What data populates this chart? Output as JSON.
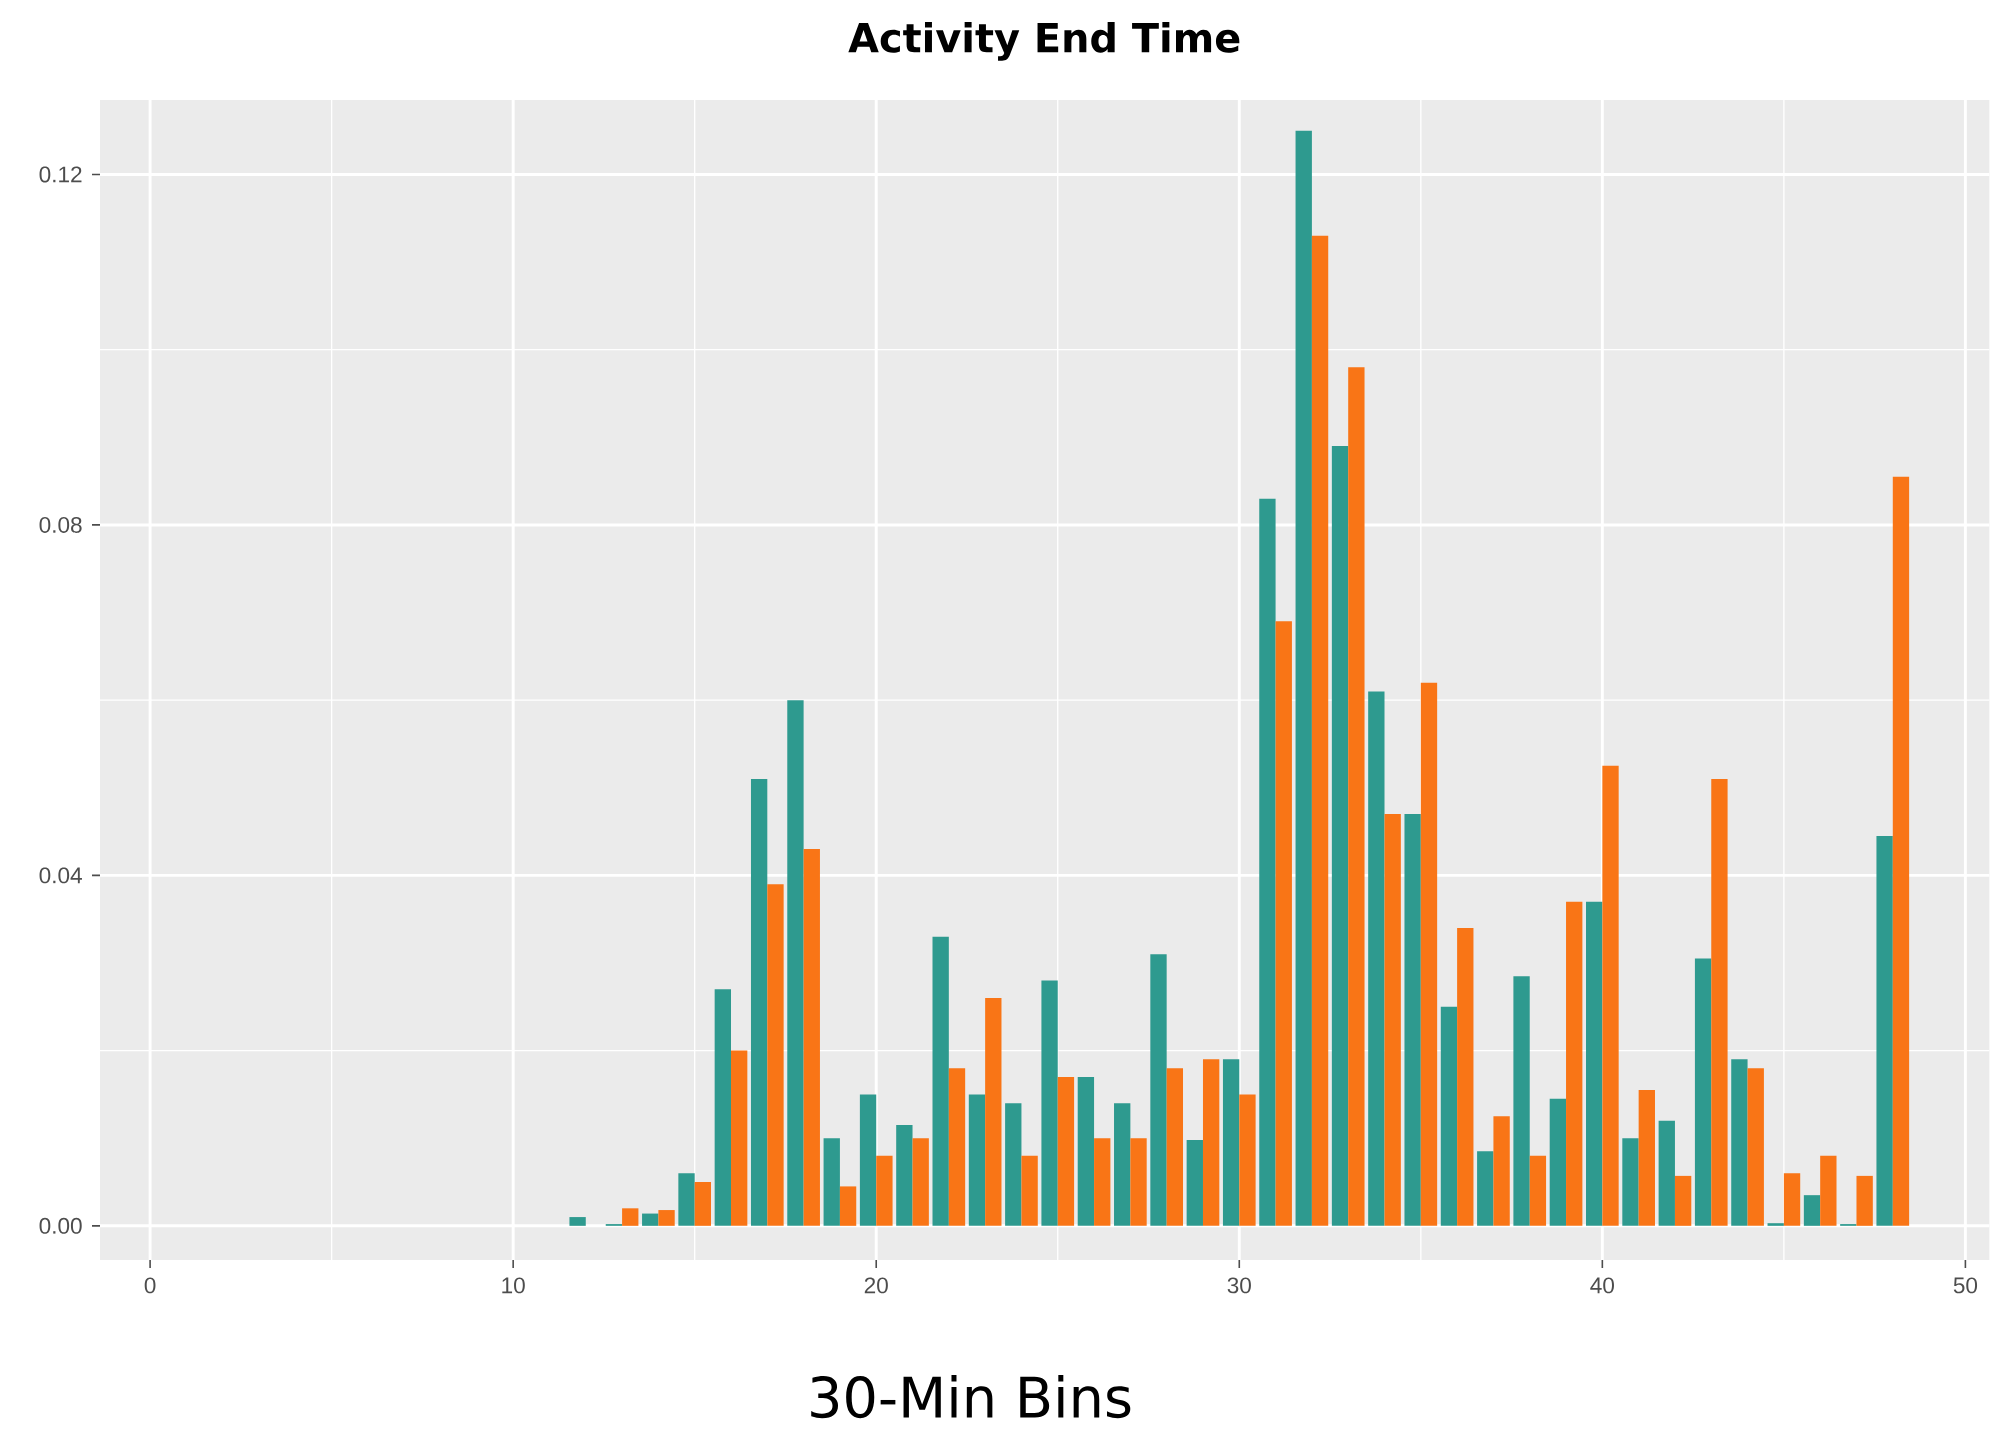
{
  "chart_data": {
    "type": "bar",
    "title": "Activity End Time",
    "xlabel": "30-Min Bins",
    "x": [
      1,
      2,
      3,
      4,
      5,
      6,
      7,
      8,
      9,
      10,
      11,
      12,
      13,
      14,
      15,
      16,
      17,
      18,
      19,
      20,
      21,
      22,
      23,
      24,
      25,
      26,
      27,
      28,
      29,
      30,
      31,
      32,
      33,
      34,
      35,
      36,
      37,
      38,
      39,
      40,
      41,
      42,
      43,
      44,
      45,
      46,
      47,
      48
    ],
    "series": [
      {
        "color": "#2e9a8f",
        "values": [
          0,
          0,
          0,
          0,
          0,
          0,
          0,
          0,
          0,
          0,
          0,
          0.001,
          0.0002,
          0.0014,
          0.006,
          0.027,
          0.051,
          0.06,
          0.01,
          0.015,
          0.0115,
          0.033,
          0.015,
          0.014,
          0.028,
          0.017,
          0.014,
          0.031,
          0.0098,
          0.019,
          0.083,
          0.125,
          0.089,
          0.061,
          0.047,
          0.025,
          0.0085,
          0.0285,
          0.0145,
          0.037,
          0.01,
          0.012,
          0.0305,
          0.019,
          0.0003,
          0.0035,
          0.0002,
          0.0445
        ]
      },
      {
        "color": "#f97516",
        "values": [
          0,
          0,
          0,
          0,
          0,
          0,
          0,
          0,
          0,
          0,
          0,
          0,
          0.002,
          0.0018,
          0.005,
          0.02,
          0.039,
          0.043,
          0.0045,
          0.008,
          0.01,
          0.018,
          0.026,
          0.008,
          0.017,
          0.01,
          0.01,
          0.018,
          0.019,
          0.015,
          0.069,
          0.113,
          0.098,
          0.047,
          0.062,
          0.034,
          0.0125,
          0.008,
          0.037,
          0.0525,
          0.0155,
          0.0057,
          0.051,
          0.018,
          0.006,
          0.008,
          0.0057,
          0.0855
        ]
      }
    ],
    "xlim": [
      -1.38,
      50.66
    ],
    "ylim": [
      -0.0039,
      0.1285
    ],
    "xticks": [
      0,
      10,
      20,
      30,
      40,
      50
    ],
    "yticks": [
      {
        "value": 0,
        "label": "0.00"
      },
      {
        "value": 0.04,
        "label": "0.04"
      },
      {
        "value": 0.08,
        "label": "0.08"
      },
      {
        "value": 0.12,
        "label": "0.12"
      }
    ],
    "grid": true
  }
}
